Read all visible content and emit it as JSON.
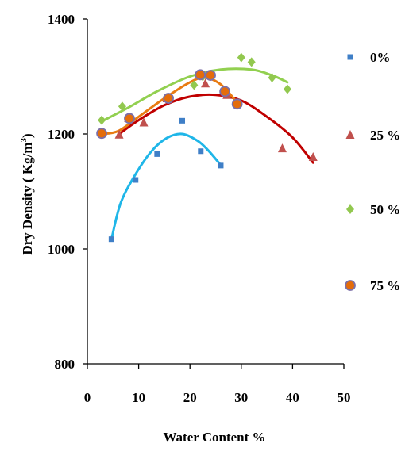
{
  "chart_data": {
    "type": "scatter",
    "xlabel": "Water Content  %",
    "ylabel": "Dry Density ( Kg/m³)",
    "ylabel_main": "Dry Density ( Kg/m",
    "ylabel_sup": "3",
    "ylabel_end": ")",
    "xlim": [
      0,
      50
    ],
    "ylim": [
      800,
      1400
    ],
    "x_ticks": [
      "0",
      "10",
      "20",
      "30",
      "40",
      "50"
    ],
    "y_ticks": [
      "800",
      "1000",
      "1200",
      "1400"
    ],
    "grid": false,
    "legend_position": "right",
    "series": [
      {
        "name": "0%",
        "marker": "square",
        "color": "#3f7fc7",
        "trend_color": "#1fb6e8",
        "points": [
          [
            4.7,
            1017
          ],
          [
            9.4,
            1120
          ],
          [
            13.6,
            1165
          ],
          [
            18.5,
            1223
          ],
          [
            22.1,
            1170
          ],
          [
            26.0,
            1145
          ]
        ],
        "trend": [
          [
            4.7,
            1017
          ],
          [
            6.5,
            1080
          ],
          [
            9.4,
            1130
          ],
          [
            12.5,
            1170
          ],
          [
            15.5,
            1193
          ],
          [
            18.5,
            1200
          ],
          [
            21.5,
            1188
          ],
          [
            23.5,
            1172
          ],
          [
            26.0,
            1146
          ]
        ]
      },
      {
        "name": "25 %",
        "marker": "triangle",
        "color": "#c0504d",
        "trend_color": "#c00000",
        "points": [
          [
            6.2,
            1199
          ],
          [
            8.0,
            1228
          ],
          [
            11.0,
            1220
          ],
          [
            15.5,
            1262
          ],
          [
            23.0,
            1288
          ],
          [
            27.2,
            1268
          ],
          [
            38.0,
            1175
          ],
          [
            44.0,
            1160
          ]
        ],
        "trend": [
          [
            6.2,
            1200
          ],
          [
            10,
            1224
          ],
          [
            15,
            1250
          ],
          [
            20,
            1265
          ],
          [
            25,
            1268
          ],
          [
            30,
            1258
          ],
          [
            35,
            1230
          ],
          [
            40,
            1194
          ],
          [
            44,
            1150
          ]
        ]
      },
      {
        "name": "50 %",
        "marker": "diamond",
        "color": "#92c84f",
        "trend_color": "#92d050",
        "points": [
          [
            2.8,
            1224
          ],
          [
            6.8,
            1248
          ],
          [
            20.8,
            1285
          ],
          [
            22.5,
            1300
          ],
          [
            30.0,
            1333
          ],
          [
            32.0,
            1325
          ],
          [
            36.0,
            1298
          ],
          [
            39.0,
            1278
          ]
        ],
        "trend": [
          [
            2.8,
            1222
          ],
          [
            8,
            1246
          ],
          [
            14,
            1276
          ],
          [
            20,
            1300
          ],
          [
            26,
            1312
          ],
          [
            32,
            1312
          ],
          [
            36,
            1302
          ],
          [
            39,
            1290
          ]
        ]
      },
      {
        "name": "75 %",
        "marker": "circle",
        "color": "#e46c0a",
        "trend_color": "#e87b12",
        "points": [
          [
            2.8,
            1201
          ],
          [
            8.2,
            1227
          ],
          [
            15.8,
            1262
          ],
          [
            22.0,
            1303
          ],
          [
            24.0,
            1302
          ],
          [
            26.8,
            1274
          ],
          [
            29.2,
            1252
          ]
        ],
        "trend": [
          [
            2.8,
            1200
          ],
          [
            6,
            1205
          ],
          [
            10,
            1230
          ],
          [
            15,
            1262
          ],
          [
            20,
            1290
          ],
          [
            23,
            1298
          ],
          [
            26,
            1286
          ],
          [
            29,
            1257
          ]
        ]
      }
    ]
  }
}
